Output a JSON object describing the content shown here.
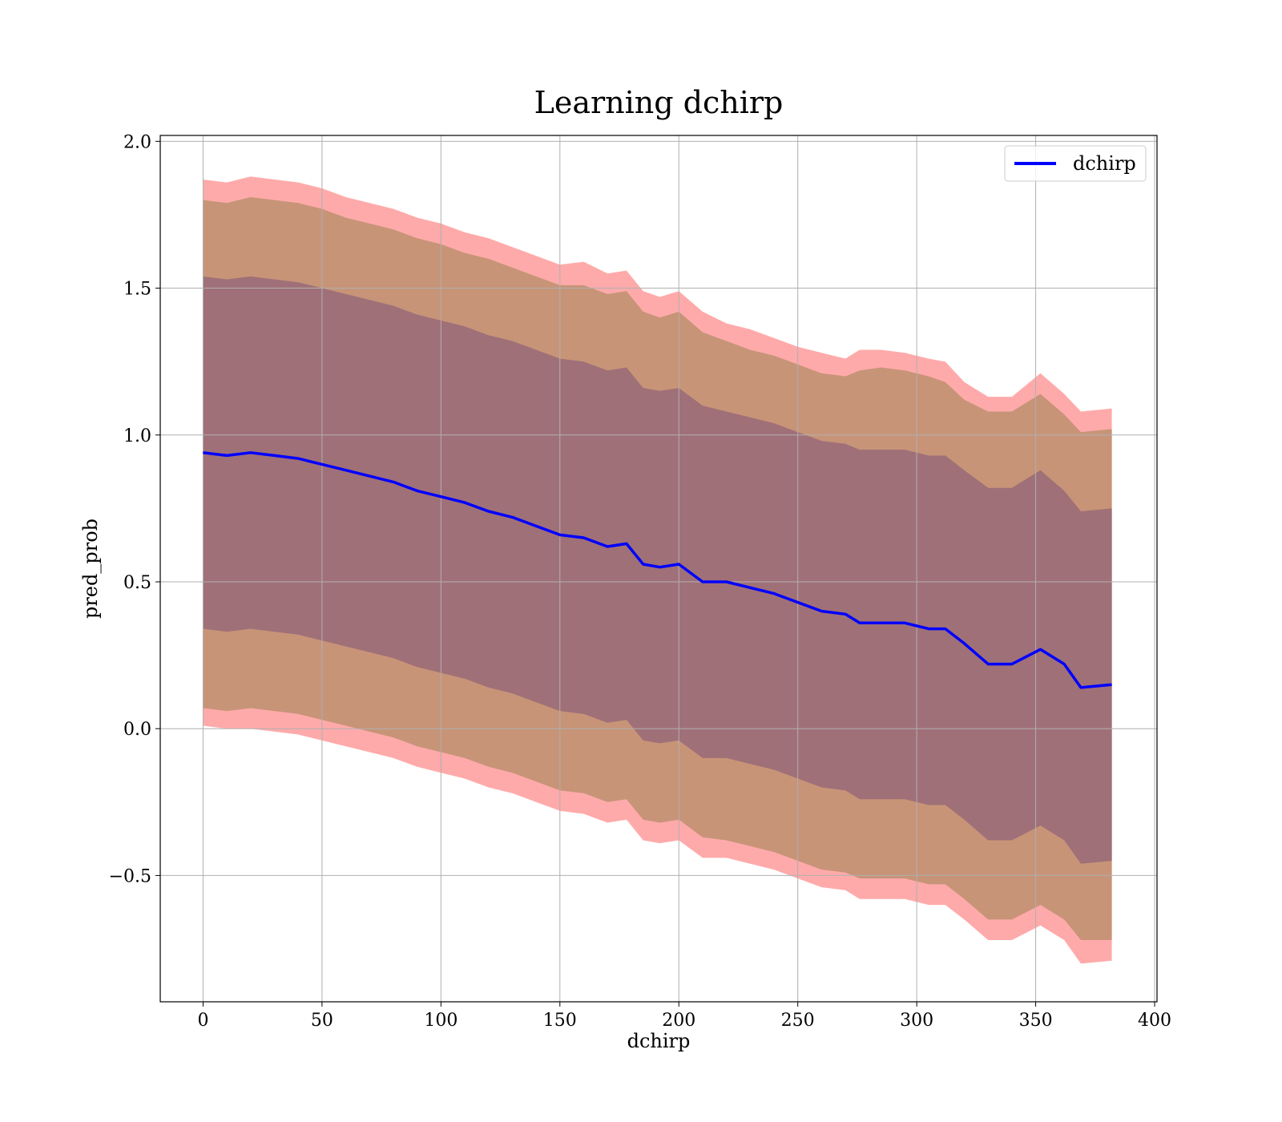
{
  "chart_data": {
    "type": "area",
    "title": "Learning dchirp",
    "xlabel": "dchirp",
    "ylabel": "pred_prob",
    "xlim": [
      -18,
      401
    ],
    "ylim": [
      -0.93,
      2.02
    ],
    "grid": true,
    "legend_position": "top-right",
    "x_ticks": [
      0,
      50,
      100,
      150,
      200,
      250,
      300,
      350,
      400
    ],
    "x_tick_labels": [
      "0",
      "50",
      "100",
      "150",
      "200",
      "250",
      "300",
      "350",
      "400"
    ],
    "y_ticks": [
      -0.5,
      0.0,
      0.5,
      1.0,
      1.5,
      2.0
    ],
    "y_tick_labels": [
      "−0.5",
      "0.0",
      "0.5",
      "1.0",
      "1.5",
      "2.0"
    ],
    "x": [
      0,
      10,
      20,
      30,
      40,
      50,
      60,
      70,
      80,
      90,
      100,
      110,
      120,
      130,
      140,
      150,
      160,
      170,
      178,
      185,
      192,
      200,
      210,
      220,
      230,
      240,
      250,
      260,
      270,
      276,
      285,
      295,
      305,
      312,
      320,
      330,
      340,
      352,
      362,
      369,
      382
    ],
    "series": [
      {
        "name": "dchirp",
        "color": "#0000ff",
        "values": [
          0.94,
          0.93,
          0.94,
          0.93,
          0.92,
          0.9,
          0.88,
          0.86,
          0.84,
          0.81,
          0.79,
          0.77,
          0.74,
          0.72,
          0.69,
          0.66,
          0.65,
          0.62,
          0.63,
          0.56,
          0.55,
          0.56,
          0.5,
          0.5,
          0.48,
          0.46,
          0.43,
          0.4,
          0.39,
          0.36,
          0.36,
          0.36,
          0.34,
          0.34,
          0.29,
          0.22,
          0.22,
          0.27,
          0.22,
          0.14,
          0.15
        ]
      }
    ],
    "bands": [
      {
        "name": "band_3",
        "color": "#ffaaaa",
        "upper": [
          1.87,
          1.86,
          1.88,
          1.87,
          1.86,
          1.84,
          1.81,
          1.79,
          1.77,
          1.74,
          1.72,
          1.69,
          1.67,
          1.64,
          1.61,
          1.58,
          1.59,
          1.55,
          1.56,
          1.49,
          1.47,
          1.49,
          1.42,
          1.38,
          1.36,
          1.33,
          1.3,
          1.28,
          1.26,
          1.29,
          1.29,
          1.28,
          1.26,
          1.25,
          1.18,
          1.13,
          1.13,
          1.21,
          1.14,
          1.08,
          1.09
        ],
        "lower": [
          0.01,
          0.0,
          0.0,
          -0.01,
          -0.02,
          -0.04,
          -0.06,
          -0.08,
          -0.1,
          -0.13,
          -0.15,
          -0.17,
          -0.2,
          -0.22,
          -0.25,
          -0.28,
          -0.29,
          -0.32,
          -0.31,
          -0.38,
          -0.39,
          -0.38,
          -0.44,
          -0.44,
          -0.46,
          -0.48,
          -0.51,
          -0.54,
          -0.55,
          -0.58,
          -0.58,
          -0.58,
          -0.6,
          -0.6,
          -0.65,
          -0.72,
          -0.72,
          -0.67,
          -0.72,
          -0.8,
          -0.79
        ]
      },
      {
        "name": "band_2",
        "color": "#c79478",
        "upper": [
          1.8,
          1.79,
          1.81,
          1.8,
          1.79,
          1.77,
          1.74,
          1.72,
          1.7,
          1.67,
          1.65,
          1.62,
          1.6,
          1.57,
          1.54,
          1.51,
          1.51,
          1.48,
          1.49,
          1.42,
          1.4,
          1.42,
          1.35,
          1.32,
          1.29,
          1.27,
          1.24,
          1.21,
          1.2,
          1.22,
          1.23,
          1.22,
          1.2,
          1.18,
          1.12,
          1.08,
          1.08,
          1.14,
          1.07,
          1.01,
          1.02
        ],
        "lower": [
          0.07,
          0.06,
          0.07,
          0.06,
          0.05,
          0.03,
          0.01,
          -0.01,
          -0.03,
          -0.06,
          -0.08,
          -0.1,
          -0.13,
          -0.15,
          -0.18,
          -0.21,
          -0.22,
          -0.25,
          -0.24,
          -0.31,
          -0.32,
          -0.31,
          -0.37,
          -0.38,
          -0.4,
          -0.42,
          -0.45,
          -0.48,
          -0.49,
          -0.51,
          -0.51,
          -0.51,
          -0.53,
          -0.53,
          -0.58,
          -0.65,
          -0.65,
          -0.6,
          -0.65,
          -0.72,
          -0.72
        ]
      },
      {
        "name": "band_1",
        "color": "#a07078",
        "upper": [
          1.54,
          1.53,
          1.54,
          1.53,
          1.52,
          1.5,
          1.48,
          1.46,
          1.44,
          1.41,
          1.39,
          1.37,
          1.34,
          1.32,
          1.29,
          1.26,
          1.25,
          1.22,
          1.23,
          1.16,
          1.15,
          1.16,
          1.1,
          1.08,
          1.06,
          1.04,
          1.01,
          0.98,
          0.97,
          0.95,
          0.95,
          0.95,
          0.93,
          0.93,
          0.88,
          0.82,
          0.82,
          0.88,
          0.81,
          0.74,
          0.75
        ],
        "lower": [
          0.34,
          0.33,
          0.34,
          0.33,
          0.32,
          0.3,
          0.28,
          0.26,
          0.24,
          0.21,
          0.19,
          0.17,
          0.14,
          0.12,
          0.09,
          0.06,
          0.05,
          0.02,
          0.03,
          -0.04,
          -0.05,
          -0.04,
          -0.1,
          -0.1,
          -0.12,
          -0.14,
          -0.17,
          -0.2,
          -0.21,
          -0.24,
          -0.24,
          -0.24,
          -0.26,
          -0.26,
          -0.31,
          -0.38,
          -0.38,
          -0.33,
          -0.38,
          -0.46,
          -0.45
        ]
      }
    ]
  }
}
